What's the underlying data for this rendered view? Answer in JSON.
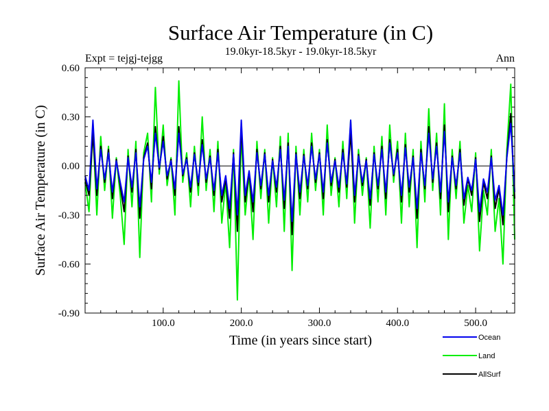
{
  "chart_data": {
    "type": "line",
    "title": "Surface Air Temperature (in C)",
    "subtitle_left": "Expt = tejgj-tejgg",
    "subtitle_center": "19.0kyr-18.5kyr - 19.0kyr-18.5kyr",
    "subtitle_right": "Ann",
    "xlabel": "Time (in years since start)",
    "ylabel": "Surface Air Temperature (in C)",
    "xlim": [
      0,
      550
    ],
    "ylim": [
      -0.9,
      0.6
    ],
    "x_ticks": [
      {
        "value": 100,
        "label": "100.0"
      },
      {
        "value": 200,
        "label": "200.0"
      },
      {
        "value": 300,
        "label": "300.0"
      },
      {
        "value": 400,
        "label": "400.0"
      },
      {
        "value": 500,
        "label": "500.0"
      }
    ],
    "y_ticks": [
      {
        "value": 0.6,
        "label": "0.60"
      },
      {
        "value": 0.3,
        "label": "0.30"
      },
      {
        "value": 0.0,
        "label": "0.00"
      },
      {
        "value": -0.3,
        "label": "-0.30"
      },
      {
        "value": -0.6,
        "label": "-0.60"
      },
      {
        "value": -0.9,
        "label": "-0.90"
      }
    ],
    "zero_line": true,
    "legend_position": "bottom-right",
    "series": [
      {
        "name": "Land",
        "color": "#00ee00",
        "x": [
          0,
          5,
          10,
          15,
          20,
          25,
          30,
          35,
          40,
          45,
          50,
          55,
          60,
          65,
          70,
          75,
          80,
          85,
          90,
          95,
          100,
          105,
          110,
          115,
          120,
          125,
          130,
          135,
          140,
          145,
          150,
          155,
          160,
          165,
          170,
          175,
          180,
          185,
          190,
          195,
          200,
          205,
          210,
          215,
          220,
          225,
          230,
          235,
          240,
          245,
          250,
          255,
          260,
          265,
          270,
          275,
          280,
          285,
          290,
          295,
          300,
          305,
          310,
          315,
          320,
          325,
          330,
          335,
          340,
          345,
          350,
          355,
          360,
          365,
          370,
          375,
          380,
          385,
          390,
          395,
          400,
          405,
          410,
          415,
          420,
          425,
          430,
          435,
          440,
          445,
          450,
          455,
          460,
          465,
          470,
          475,
          480,
          485,
          490,
          495,
          500,
          505,
          510,
          515,
          520,
          525,
          530,
          535,
          540,
          545,
          550
        ],
        "values": [
          -0.1,
          -0.28,
          0.22,
          -0.3,
          0.18,
          -0.15,
          0.12,
          -0.32,
          0.05,
          -0.18,
          -0.48,
          0.1,
          -0.25,
          0.15,
          -0.56,
          0.08,
          0.2,
          -0.22,
          0.48,
          -0.05,
          0.25,
          -0.12,
          0.05,
          -0.3,
          0.52,
          -0.1,
          0.08,
          -0.25,
          0.12,
          -0.18,
          0.3,
          -0.15,
          0.1,
          -0.28,
          0.15,
          -0.35,
          -0.1,
          -0.5,
          0.1,
          -0.82,
          0.2,
          -0.3,
          -0.05,
          -0.45,
          0.15,
          -0.2,
          0.1,
          -0.35,
          0.05,
          -0.25,
          0.18,
          -0.4,
          0.2,
          -0.64,
          0.12,
          -0.3,
          0.1,
          -0.22,
          0.2,
          -0.15,
          0.1,
          -0.3,
          0.25,
          -0.18,
          0.05,
          -0.25,
          0.15,
          -0.2,
          0.28,
          -0.35,
          0.1,
          -0.18,
          0.05,
          -0.38,
          0.12,
          -0.22,
          0.18,
          -0.3,
          0.25,
          -0.1,
          0.15,
          -0.35,
          0.2,
          -0.25,
          0.1,
          -0.5,
          0.15,
          -0.22,
          0.35,
          -0.15,
          0.2,
          -0.3,
          0.38,
          -0.45,
          0.1,
          -0.2,
          0.15,
          -0.35,
          -0.12,
          -0.28,
          0.08,
          -0.52,
          -0.15,
          -0.3,
          0.1,
          -0.4,
          -0.2,
          -0.6,
          0.1,
          0.5,
          -0.45
        ]
      },
      {
        "name": "AllSurf",
        "color": "#000000",
        "x": [
          0,
          5,
          10,
          15,
          20,
          25,
          30,
          35,
          40,
          45,
          50,
          55,
          60,
          65,
          70,
          75,
          80,
          85,
          90,
          95,
          100,
          105,
          110,
          115,
          120,
          125,
          130,
          135,
          140,
          145,
          150,
          155,
          160,
          165,
          170,
          175,
          180,
          185,
          190,
          195,
          200,
          205,
          210,
          215,
          220,
          225,
          230,
          235,
          240,
          245,
          250,
          255,
          260,
          265,
          270,
          275,
          280,
          285,
          290,
          295,
          300,
          305,
          310,
          315,
          320,
          325,
          330,
          335,
          340,
          345,
          350,
          355,
          360,
          365,
          370,
          375,
          380,
          385,
          390,
          395,
          400,
          405,
          410,
          415,
          420,
          425,
          430,
          435,
          440,
          445,
          450,
          455,
          460,
          465,
          470,
          475,
          480,
          485,
          490,
          495,
          500,
          505,
          510,
          515,
          520,
          525,
          530,
          535,
          540,
          545,
          550
        ],
        "values": [
          -0.08,
          -0.18,
          0.2,
          -0.18,
          0.12,
          -0.1,
          0.1,
          -0.2,
          0.04,
          -0.12,
          -0.28,
          0.06,
          -0.16,
          0.1,
          -0.32,
          0.05,
          0.14,
          -0.14,
          0.24,
          -0.02,
          0.18,
          -0.08,
          0.04,
          -0.18,
          0.24,
          -0.06,
          0.05,
          -0.16,
          0.08,
          -0.12,
          0.16,
          -0.1,
          0.06,
          -0.18,
          0.1,
          -0.22,
          -0.08,
          -0.32,
          0.08,
          -0.4,
          0.24,
          -0.22,
          -0.04,
          -0.28,
          0.1,
          -0.14,
          0.08,
          -0.22,
          0.04,
          -0.16,
          0.12,
          -0.26,
          0.14,
          -0.42,
          0.08,
          -0.2,
          0.07,
          -0.14,
          0.14,
          -0.1,
          0.08,
          -0.2,
          0.16,
          -0.12,
          0.04,
          -0.16,
          0.1,
          -0.13,
          0.2,
          -0.22,
          0.07,
          -0.12,
          0.04,
          -0.24,
          0.08,
          -0.14,
          0.12,
          -0.2,
          0.16,
          -0.06,
          0.1,
          -0.22,
          0.13,
          -0.16,
          0.06,
          -0.32,
          0.1,
          -0.14,
          0.24,
          -0.1,
          0.14,
          -0.2,
          0.25,
          -0.28,
          0.06,
          -0.14,
          0.1,
          -0.24,
          -0.08,
          -0.18,
          0.05,
          -0.34,
          -0.1,
          -0.2,
          0.06,
          -0.26,
          -0.14,
          -0.36,
          0.06,
          0.32,
          -0.2
        ]
      },
      {
        "name": "Ocean",
        "color": "#0000ee",
        "x": [
          0,
          5,
          10,
          15,
          20,
          25,
          30,
          35,
          40,
          45,
          50,
          55,
          60,
          65,
          70,
          75,
          80,
          85,
          90,
          95,
          100,
          105,
          110,
          115,
          120,
          125,
          130,
          135,
          140,
          145,
          150,
          155,
          160,
          165,
          170,
          175,
          180,
          185,
          190,
          195,
          200,
          205,
          210,
          215,
          220,
          225,
          230,
          235,
          240,
          245,
          250,
          255,
          260,
          265,
          270,
          275,
          280,
          285,
          290,
          295,
          300,
          305,
          310,
          315,
          320,
          325,
          330,
          335,
          340,
          345,
          350,
          355,
          360,
          365,
          370,
          375,
          380,
          385,
          390,
          395,
          400,
          405,
          410,
          415,
          420,
          425,
          430,
          435,
          440,
          445,
          450,
          455,
          460,
          465,
          470,
          475,
          480,
          485,
          490,
          495,
          500,
          505,
          510,
          515,
          520,
          525,
          530,
          535,
          540,
          545,
          550
        ],
        "values": [
          -0.06,
          -0.15,
          0.28,
          -0.14,
          0.1,
          -0.08,
          0.08,
          -0.16,
          0.03,
          -0.1,
          -0.22,
          0.05,
          -0.13,
          0.08,
          -0.25,
          0.04,
          0.12,
          -0.1,
          0.2,
          -0.01,
          0.15,
          -0.06,
          0.03,
          -0.14,
          0.2,
          -0.05,
          0.04,
          -0.13,
          0.07,
          -0.1,
          0.13,
          -0.08,
          0.05,
          -0.15,
          0.08,
          -0.18,
          -0.06,
          -0.26,
          0.07,
          -0.3,
          0.28,
          -0.18,
          -0.03,
          -0.22,
          0.08,
          -0.12,
          0.07,
          -0.18,
          0.03,
          -0.13,
          0.1,
          -0.21,
          0.12,
          -0.34,
          0.07,
          -0.16,
          0.06,
          -0.12,
          0.12,
          -0.08,
          0.07,
          -0.16,
          0.14,
          -0.1,
          0.03,
          -0.13,
          0.08,
          -0.11,
          0.28,
          -0.18,
          0.06,
          -0.1,
          0.03,
          -0.2,
          0.07,
          -0.12,
          0.1,
          -0.16,
          0.14,
          -0.05,
          0.08,
          -0.18,
          0.11,
          -0.13,
          0.05,
          -0.26,
          0.08,
          -0.12,
          0.2,
          -0.08,
          0.12,
          -0.16,
          0.21,
          -0.22,
          0.05,
          -0.12,
          0.08,
          -0.2,
          -0.07,
          -0.15,
          0.04,
          -0.28,
          -0.08,
          -0.16,
          0.05,
          -0.21,
          -0.12,
          -0.3,
          0.05,
          0.26,
          -0.16
        ]
      }
    ],
    "legend": [
      {
        "name": "Ocean",
        "color": "#0000ee"
      },
      {
        "name": "Land",
        "color": "#00ee00"
      },
      {
        "name": "AllSurf",
        "color": "#000000"
      }
    ]
  }
}
